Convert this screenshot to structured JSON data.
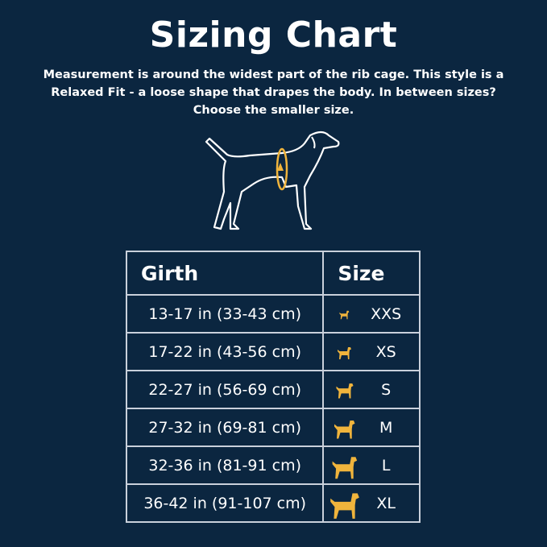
{
  "title": "Sizing Chart",
  "description": "Measurement is around the widest part of the rib cage. This style is a Relaxed Fit - a loose shape that drapes the body. In between sizes? Choose the smaller size.",
  "illustration": "dog-girth-measurement-icon",
  "colors": {
    "background": "#0b2640",
    "accent": "#f0b43c",
    "text": "#ffffff",
    "border": "#c9d0db"
  },
  "table": {
    "headers": [
      "Girth",
      "Size"
    ],
    "rows": [
      {
        "girth": "13-17 in (33-43 cm)",
        "size": "XXS",
        "icon": "tiny-dog-icon"
      },
      {
        "girth": "17-22 in (43-56 cm)",
        "size": "XS",
        "icon": "small-dog-icon"
      },
      {
        "girth": "22-27 in (56-69 cm)",
        "size": "S",
        "icon": "poodle-dog-icon"
      },
      {
        "girth": "27-32 in (69-81 cm)",
        "size": "M",
        "icon": "medium-dog-icon"
      },
      {
        "girth": "32-36 in (81-91 cm)",
        "size": "L",
        "icon": "large-dog-icon"
      },
      {
        "girth": "36-42 in (91-107 cm)",
        "size": "XL",
        "icon": "great-dane-icon"
      }
    ]
  }
}
